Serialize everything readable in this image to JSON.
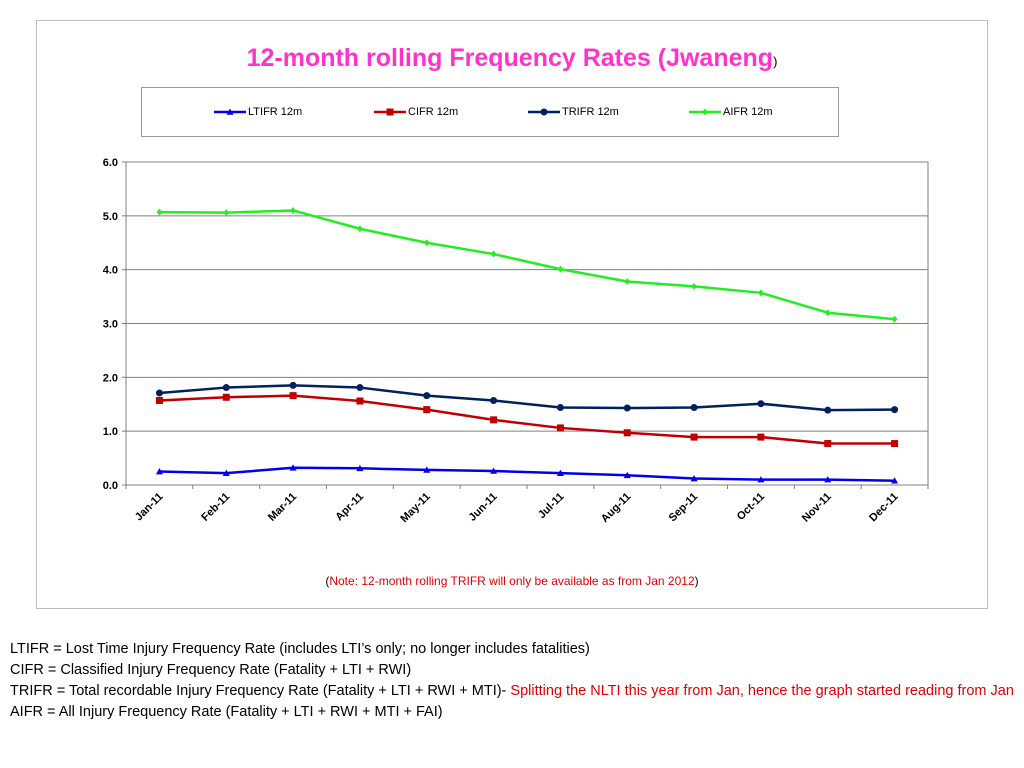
{
  "chart_data": {
    "type": "line",
    "title": "12-month rolling Frequency Rates (Jwaneng",
    "title_suffix": ")",
    "categories": [
      "Jan-11",
      "Feb-11",
      "Mar-11",
      "Apr-11",
      "May-11",
      "Jun-11",
      "Jul-11",
      "Aug-11",
      "Sep-11",
      "Oct-11",
      "Nov-11",
      "Dec-11"
    ],
    "ylim": [
      0,
      6
    ],
    "yticks": [
      "0.0",
      "1.0",
      "2.0",
      "3.0",
      "4.0",
      "5.0",
      "6.0"
    ],
    "grid": true,
    "legend_position": "top",
    "series": [
      {
        "name": "LTIFR 12m",
        "color": "#0000ee",
        "marker": "triangle",
        "values": [
          0.25,
          0.22,
          0.32,
          0.31,
          0.28,
          0.26,
          0.22,
          0.18,
          0.12,
          0.1,
          0.1,
          0.08
        ]
      },
      {
        "name": "CIFR 12m",
        "color": "#c00000",
        "marker": "square",
        "values": [
          1.57,
          1.63,
          1.66,
          1.56,
          1.4,
          1.21,
          1.06,
          0.97,
          0.89,
          0.89,
          0.77,
          0.77
        ]
      },
      {
        "name": "TRIFR 12m",
        "color": "#002060",
        "marker": "circle",
        "values": [
          1.71,
          1.81,
          1.85,
          1.81,
          1.66,
          1.57,
          1.44,
          1.43,
          1.44,
          1.51,
          1.39,
          1.4
        ]
      },
      {
        "name": "AIFR 12m",
        "color": "#22ee22",
        "marker": "diamond",
        "values": [
          5.07,
          5.06,
          5.1,
          4.76,
          4.5,
          4.29,
          4.01,
          3.78,
          3.69,
          3.57,
          3.2,
          3.08
        ]
      }
    ]
  },
  "note": {
    "open": "(",
    "text": "Note: 12-month rolling TRIFR will only be available as from Jan 2012",
    "close": ")"
  },
  "definitions": {
    "ltifr": "LTIFR = Lost Time Injury Frequency Rate (includes LTI’s only; no longer includes fatalities)",
    "cifr": "CIFR =  Classified Injury Frequency Rate (Fatality + LTI + RWI)",
    "trifr": "TRIFR = Total recordable Injury Frequency Rate (Fatality + LTI + RWI + MTI)- ",
    "trifr_note": "Splitting the NLTI this year from Jan, hence the graph started reading from Jan",
    "aifr": "AIFR = All Injury Frequency Rate (Fatality + LTI + RWI + MTI + FAI)"
  }
}
